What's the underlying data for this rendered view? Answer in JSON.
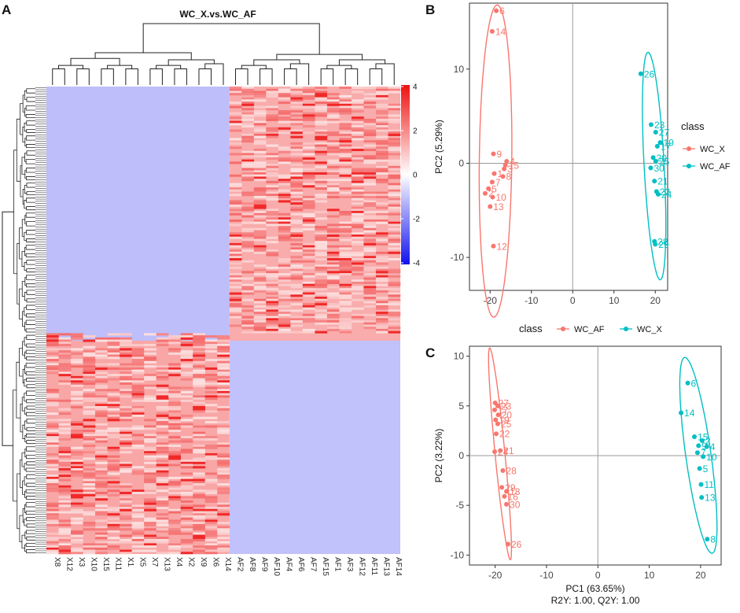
{
  "panels": {
    "a": "A",
    "b": "B",
    "c": "C"
  },
  "colors": {
    "af": "#F8766D",
    "x": "#00BFC4",
    "hi": "#EE1111",
    "mid": "#FFFFFF",
    "lo": "#1111EE"
  },
  "chart_data": [
    {
      "id": "heatmap",
      "type": "heatmap",
      "title": "WC_X.vs.WC_AF",
      "samples": [
        "X8",
        "X12",
        "X3",
        "X10",
        "X15",
        "X11",
        "X1",
        "X5",
        "X7",
        "X13",
        "X4",
        "X2",
        "X9",
        "X6",
        "X14",
        "AF2",
        "AF8",
        "AF9",
        "AF10",
        "AF4",
        "AF6",
        "AF7",
        "AF15",
        "AF1",
        "AF3",
        "AF12",
        "AF11",
        "AF13",
        "AF14"
      ],
      "colorbar": {
        "ticks": [
          4,
          2,
          0,
          -2,
          -4
        ],
        "range": [
          -4,
          4
        ]
      }
    },
    {
      "id": "pca",
      "type": "scatter",
      "xlabel": "",
      "ylabel": "PC2 (5.29%)",
      "xlim": [
        -25,
        23
      ],
      "ylim": [
        -13.5,
        17
      ],
      "xticks": [
        -20,
        -10,
        0,
        10,
        20
      ],
      "yticks": [
        10,
        0,
        -10
      ],
      "legend": {
        "title": "class",
        "entries": [
          "WC_X",
          "WC_AF"
        ],
        "symbol": "a"
      },
      "series": [
        {
          "name": "WC_X",
          "color": "#F8766D",
          "points": [
            {
              "label": "6",
              "x": -18.5,
              "y": 16.2
            },
            {
              "label": "14",
              "x": -19.5,
              "y": 14.0
            },
            {
              "label": "9",
              "x": -19.2,
              "y": 1.0
            },
            {
              "label": "4",
              "x": -16.0,
              "y": 0.2
            },
            {
              "label": "15",
              "x": -16.3,
              "y": -0.2
            },
            {
              "label": "3",
              "x": -16.6,
              "y": -0.6
            },
            {
              "label": "1",
              "x": -19.0,
              "y": -1.1
            },
            {
              "label": "8",
              "x": -16.9,
              "y": -1.4
            },
            {
              "label": "7",
              "x": -19.5,
              "y": -2.0
            },
            {
              "label": "5",
              "x": -20.4,
              "y": -2.7
            },
            {
              "label": "2",
              "x": -21.2,
              "y": -3.2
            },
            {
              "label": "10",
              "x": -19.4,
              "y": -3.6
            },
            {
              "label": "13",
              "x": -20.0,
              "y": -4.6
            },
            {
              "label": "12",
              "x": -19.2,
              "y": -8.8
            }
          ]
        },
        {
          "name": "WC_AF",
          "color": "#00BFC4",
          "points": [
            {
              "label": "26",
              "x": 16.5,
              "y": 9.5
            },
            {
              "label": "23",
              "x": 19.0,
              "y": 4.1
            },
            {
              "label": "27",
              "x": 20.1,
              "y": 3.3
            },
            {
              "label": "19",
              "x": 21.2,
              "y": 2.2
            },
            {
              "label": "17",
              "x": 20.5,
              "y": 1.8
            },
            {
              "label": "20",
              "x": 19.5,
              "y": 0.6
            },
            {
              "label": "25",
              "x": 20.1,
              "y": 0.2
            },
            {
              "label": "30",
              "x": 18.9,
              "y": -0.5
            },
            {
              "label": "21",
              "x": 19.8,
              "y": -1.9
            },
            {
              "label": "22",
              "x": 20.3,
              "y": -3.0
            },
            {
              "label": "24",
              "x": 20.7,
              "y": -3.3
            },
            {
              "label": "28",
              "x": 19.8,
              "y": -8.3
            },
            {
              "label": "29",
              "x": 20.0,
              "y": -8.6
            }
          ]
        }
      ]
    },
    {
      "id": "oplsda",
      "type": "scatter",
      "xlabel": "PC1 (63.65%)",
      "ylabel": "PC2 (3.22%)",
      "footnote": "R2Y: 1.00, Q2Y: 1.00",
      "xlim": [
        -25,
        24
      ],
      "ylim": [
        -11,
        11
      ],
      "xticks": [
        -20,
        -10,
        0,
        10,
        20
      ],
      "yticks": [
        10,
        5,
        0,
        -5,
        -10
      ],
      "legend": {
        "title": "class",
        "entries": [
          "WC_AF",
          "WC_X"
        ],
        "symbol": "a"
      },
      "series": [
        {
          "name": "WC_AF",
          "color": "#F8766D",
          "points": [
            {
              "label": "27",
              "x": -20.0,
              "y": 5.3
            },
            {
              "label": "23",
              "x": -19.5,
              "y": 5.0
            },
            {
              "label": "17",
              "x": -20.1,
              "y": 4.6
            },
            {
              "label": "20",
              "x": -19.4,
              "y": 4.1
            },
            {
              "label": "19",
              "x": -19.9,
              "y": 3.6
            },
            {
              "label": "25",
              "x": -19.5,
              "y": 3.2
            },
            {
              "label": "22",
              "x": -19.8,
              "y": 2.2
            },
            {
              "label": "24",
              "x": -20.1,
              "y": 0.4
            },
            {
              "label": "21",
              "x": -19.0,
              "y": 0.5
            },
            {
              "label": "28",
              "x": -18.5,
              "y": -1.5
            },
            {
              "label": "29",
              "x": -18.7,
              "y": -3.2
            },
            {
              "label": "18",
              "x": -17.8,
              "y": -3.6
            },
            {
              "label": "16",
              "x": -18.2,
              "y": -4.1
            },
            {
              "label": "30",
              "x": -17.8,
              "y": -4.9
            },
            {
              "label": "26",
              "x": -17.5,
              "y": -8.9
            }
          ]
        },
        {
          "name": "WC_X",
          "color": "#00BFC4",
          "points": [
            {
              "label": "6",
              "x": 17.5,
              "y": 7.3
            },
            {
              "label": "14",
              "x": 16.2,
              "y": 4.3
            },
            {
              "label": "15",
              "x": 18.8,
              "y": 1.9
            },
            {
              "label": "2",
              "x": 20.3,
              "y": 1.5
            },
            {
              "label": "9",
              "x": 19.6,
              "y": 1.0
            },
            {
              "label": "4",
              "x": 21.2,
              "y": 0.9
            },
            {
              "label": "7",
              "x": 19.4,
              "y": 0.3
            },
            {
              "label": "10",
              "x": 20.5,
              "y": -0.1
            },
            {
              "label": "5",
              "x": 19.8,
              "y": -1.3
            },
            {
              "label": "11",
              "x": 20.1,
              "y": -2.9
            },
            {
              "label": "13",
              "x": 20.2,
              "y": -4.2
            },
            {
              "label": "8",
              "x": 21.3,
              "y": -8.4
            }
          ]
        }
      ]
    }
  ]
}
